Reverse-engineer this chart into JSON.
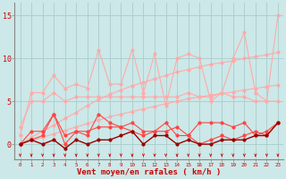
{
  "x": [
    0,
    1,
    2,
    3,
    4,
    5,
    6,
    7,
    8,
    9,
    10,
    11,
    12,
    13,
    14,
    15,
    16,
    17,
    18,
    19,
    20,
    21,
    22,
    23
  ],
  "line_pink_volatile": [
    2,
    5,
    5,
    6,
    5,
    5.5,
    5.5,
    5.5,
    5.5,
    5.5,
    5.5,
    5.5,
    5.5,
    5.5,
    5.5,
    6,
    5.5,
    5.5,
    6,
    5.5,
    5.5,
    5,
    5,
    5
  ],
  "line_pink_upper": [
    1,
    6,
    6,
    8,
    6.5,
    7,
    6.5,
    11,
    7,
    7,
    11,
    6,
    10.5,
    4.5,
    10,
    10.5,
    10,
    5,
    6,
    10,
    13,
    6,
    5,
    15
  ],
  "line_diag_upper": [
    0,
    0.8,
    1.5,
    2.2,
    3.0,
    3.7,
    4.5,
    5.2,
    5.8,
    6.3,
    6.8,
    7.2,
    7.6,
    8.0,
    8.4,
    8.7,
    9.0,
    9.3,
    9.5,
    9.7,
    10.0,
    10.2,
    10.4,
    10.7
  ],
  "line_diag_lower": [
    0,
    0.4,
    0.8,
    1.2,
    1.6,
    2.0,
    2.4,
    2.8,
    3.2,
    3.5,
    3.8,
    4.1,
    4.4,
    4.7,
    5.0,
    5.3,
    5.5,
    5.7,
    5.9,
    6.1,
    6.3,
    6.5,
    6.7,
    6.9
  ],
  "line_red_med1": [
    0,
    1.5,
    1.5,
    3.5,
    1,
    1.5,
    1.5,
    2,
    2,
    2,
    1.5,
    1,
    1.5,
    1.5,
    2,
    1,
    2.5,
    2.5,
    2.5,
    2,
    2.5,
    1,
    1.5,
    2.5
  ],
  "line_red_med2": [
    0,
    0.5,
    1,
    3.5,
    0,
    1.5,
    1,
    3.5,
    2.5,
    2,
    2.5,
    1.5,
    1.5,
    2.5,
    1,
    1,
    0,
    0.5,
    1,
    0.5,
    1,
    1.5,
    1,
    2.5
  ],
  "line_dark_low": [
    0,
    0.5,
    0,
    0.5,
    -0.5,
    0.5,
    0,
    0.5,
    0.5,
    1,
    1.5,
    0,
    1,
    1,
    0,
    0.5,
    0,
    0,
    0.5,
    0.5,
    0.5,
    1,
    1,
    2.5
  ],
  "bg_color": "#cce8e8",
  "grid_color": "#aacccc",
  "color_light_pink": "#ffaaaa",
  "color_med_red": "#ff4444",
  "color_dark_red": "#990000",
  "xlabel": "Vent moyen/en rafales ( km/h )",
  "xlim": [
    -0.5,
    23.5
  ],
  "ylim": [
    -1.8,
    16.5
  ],
  "yticks": [
    0,
    5,
    10,
    15
  ]
}
